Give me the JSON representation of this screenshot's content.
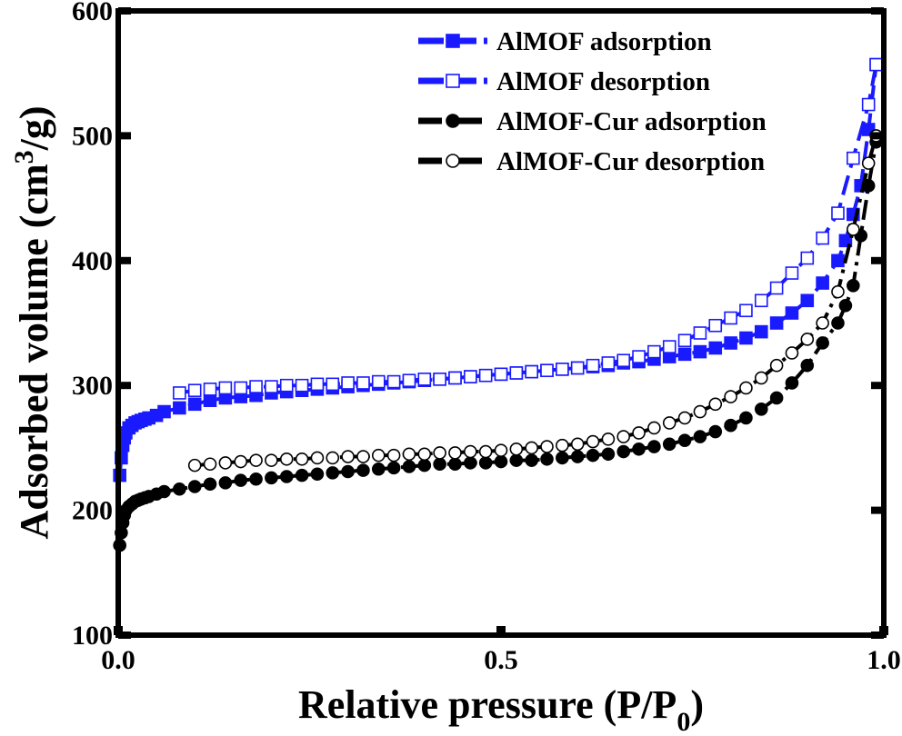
{
  "chart_data": {
    "type": "line",
    "xlabel": "Relative pressure (P/P",
    "xlabel_sub": "0",
    "xlabel_close": ")",
    "ylabel": "Adsorbed volume (cm",
    "ylabel_sup": "3",
    "ylabel_close": "/g)",
    "xlim": [
      0.0,
      1.0
    ],
    "ylim": [
      100,
      600
    ],
    "xticks": [
      {
        "value": 0.0,
        "label": "0.0"
      },
      {
        "value": 0.5,
        "label": "0.5"
      },
      {
        "value": 1.0,
        "label": "1.0"
      }
    ],
    "yticks": [
      {
        "value": 100,
        "label": "100"
      },
      {
        "value": 200,
        "label": "200"
      },
      {
        "value": 300,
        "label": "300"
      },
      {
        "value": 400,
        "label": "400"
      },
      {
        "value": 500,
        "label": "500"
      },
      {
        "value": 600,
        "label": "600"
      }
    ],
    "legend_position": "top-right",
    "series": [
      {
        "name": "AlMOF adsorption",
        "color": "#1a1aff",
        "marker": "square",
        "filled": true,
        "line_style": "dashed",
        "x": [
          0.002,
          0.004,
          0.006,
          0.008,
          0.01,
          0.014,
          0.018,
          0.022,
          0.026,
          0.03,
          0.035,
          0.04,
          0.05,
          0.06,
          0.08,
          0.1,
          0.12,
          0.14,
          0.16,
          0.18,
          0.2,
          0.22,
          0.24,
          0.26,
          0.28,
          0.3,
          0.32,
          0.34,
          0.36,
          0.38,
          0.4,
          0.42,
          0.44,
          0.46,
          0.48,
          0.5,
          0.52,
          0.54,
          0.56,
          0.58,
          0.6,
          0.62,
          0.64,
          0.66,
          0.68,
          0.7,
          0.72,
          0.74,
          0.76,
          0.78,
          0.8,
          0.82,
          0.84,
          0.86,
          0.88,
          0.9,
          0.92,
          0.94,
          0.95,
          0.96,
          0.97,
          0.98,
          0.99
        ],
        "y": [
          228,
          242,
          252,
          258,
          262,
          266,
          268,
          270,
          271,
          272,
          273,
          274,
          276,
          279,
          282,
          285,
          288,
          290,
          291,
          292,
          294,
          295,
          296,
          297,
          298,
          299,
          300,
          301,
          302,
          303,
          304,
          305,
          306,
          307,
          308,
          309,
          310,
          311,
          312,
          313,
          314,
          315,
          316,
          318,
          319,
          321,
          323,
          325,
          327,
          330,
          334,
          338,
          343,
          350,
          358,
          368,
          382,
          400,
          416,
          437,
          460,
          505,
          557
        ]
      },
      {
        "name": "AlMOF desorption",
        "color": "#1a1aff",
        "marker": "square",
        "filled": false,
        "line_style": "dashed",
        "x": [
          0.08,
          0.1,
          0.12,
          0.14,
          0.16,
          0.18,
          0.2,
          0.22,
          0.24,
          0.26,
          0.28,
          0.3,
          0.32,
          0.34,
          0.36,
          0.38,
          0.4,
          0.42,
          0.44,
          0.46,
          0.48,
          0.5,
          0.52,
          0.54,
          0.56,
          0.58,
          0.6,
          0.62,
          0.64,
          0.66,
          0.68,
          0.7,
          0.72,
          0.74,
          0.76,
          0.78,
          0.8,
          0.82,
          0.84,
          0.86,
          0.88,
          0.9,
          0.92,
          0.94,
          0.96,
          0.98,
          0.99
        ],
        "y": [
          294,
          296,
          297,
          298,
          298,
          299,
          299,
          300,
          300,
          301,
          301,
          302,
          302,
          303,
          303,
          304,
          305,
          305,
          306,
          307,
          308,
          309,
          310,
          311,
          312,
          313,
          314,
          316,
          318,
          320,
          323,
          327,
          331,
          336,
          342,
          348,
          354,
          360,
          368,
          378,
          390,
          402,
          418,
          438,
          482,
          525,
          557
        ]
      },
      {
        "name": "AlMOF-Cur adsorption",
        "color": "#000000",
        "marker": "circle",
        "filled": true,
        "line_style": "dashdot",
        "x": [
          0.002,
          0.004,
          0.006,
          0.008,
          0.01,
          0.014,
          0.018,
          0.022,
          0.026,
          0.03,
          0.035,
          0.04,
          0.05,
          0.06,
          0.08,
          0.1,
          0.12,
          0.14,
          0.16,
          0.18,
          0.2,
          0.22,
          0.24,
          0.26,
          0.28,
          0.3,
          0.32,
          0.34,
          0.36,
          0.38,
          0.4,
          0.42,
          0.44,
          0.46,
          0.48,
          0.5,
          0.52,
          0.54,
          0.56,
          0.58,
          0.6,
          0.62,
          0.64,
          0.66,
          0.68,
          0.7,
          0.72,
          0.74,
          0.76,
          0.78,
          0.8,
          0.82,
          0.84,
          0.86,
          0.88,
          0.9,
          0.92,
          0.94,
          0.95,
          0.96,
          0.97,
          0.98,
          0.99
        ],
        "y": [
          172,
          182,
          190,
          196,
          200,
          203,
          205,
          207,
          208,
          209,
          210,
          211,
          213,
          215,
          217,
          219,
          221,
          222,
          224,
          225,
          226,
          227,
          228,
          229,
          230,
          231,
          232,
          233,
          234,
          235,
          236,
          237,
          237,
          238,
          238,
          239,
          240,
          240,
          241,
          242,
          243,
          244,
          245,
          247,
          249,
          251,
          253,
          256,
          259,
          263,
          268,
          274,
          281,
          290,
          302,
          316,
          334,
          350,
          364,
          380,
          420,
          460,
          495
        ]
      },
      {
        "name": "AlMOF-Cur desorption",
        "color": "#000000",
        "marker": "circle",
        "filled": false,
        "line_style": "dashdot",
        "x": [
          0.1,
          0.12,
          0.14,
          0.16,
          0.18,
          0.2,
          0.22,
          0.24,
          0.26,
          0.28,
          0.3,
          0.32,
          0.34,
          0.36,
          0.38,
          0.4,
          0.42,
          0.44,
          0.46,
          0.48,
          0.5,
          0.52,
          0.54,
          0.56,
          0.58,
          0.6,
          0.62,
          0.64,
          0.66,
          0.68,
          0.7,
          0.72,
          0.74,
          0.76,
          0.78,
          0.8,
          0.82,
          0.84,
          0.86,
          0.88,
          0.9,
          0.92,
          0.94,
          0.96,
          0.98,
          0.99
        ],
        "y": [
          236,
          237,
          238,
          239,
          240,
          240,
          241,
          241,
          242,
          242,
          243,
          243,
          244,
          244,
          245,
          245,
          246,
          246,
          247,
          247,
          248,
          249,
          250,
          251,
          252,
          253,
          255,
          257,
          259,
          262,
          266,
          270,
          274,
          279,
          285,
          291,
          298,
          306,
          316,
          326,
          337,
          350,
          375,
          425,
          478,
          500
        ]
      }
    ]
  }
}
